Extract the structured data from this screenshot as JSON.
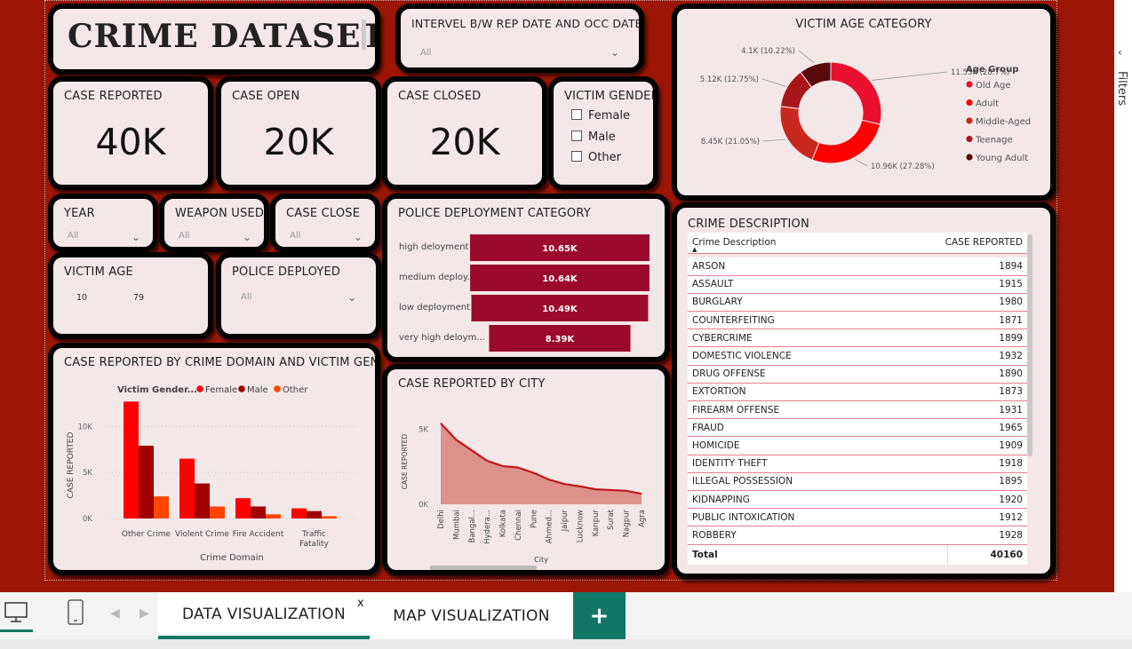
{
  "title": "CRIME DATASET",
  "date_slicer": {
    "title": "INTERVEL B/W REP DATE AND OCC DATE",
    "value": "All"
  },
  "kpis": {
    "reported": {
      "label": "CASE REPORTED",
      "value": "40K"
    },
    "open": {
      "label": "CASE OPEN",
      "value": "20K"
    },
    "closed": {
      "label": "CASE CLOSED",
      "value": "20K"
    }
  },
  "gender_slicer": {
    "title": "VICTIM GENDER",
    "options": [
      "Female",
      "Male",
      "Other"
    ]
  },
  "year_slicer": {
    "title": "YEAR",
    "value": "All"
  },
  "weapon_slicer": {
    "title": "WEAPON USED",
    "value": "All"
  },
  "caseclose_slicer": {
    "title": "CASE CLOSE",
    "value": "All"
  },
  "victim_age_slicer": {
    "title": "VICTIM AGE",
    "min": "10",
    "max": "79"
  },
  "police_slicer": {
    "title": "POLICE DEPLOYED",
    "value": "All"
  },
  "colors": {
    "background": "#9b1606",
    "card": "#f3e7e7",
    "bar": "#9b0a2e",
    "accent": "#117865",
    "female": "#ff0000",
    "male": "#a00000",
    "other": "#ff4500"
  },
  "donut": {
    "title": "VICTIM AGE CATEGORY",
    "legend_title": "Age Group",
    "legend": [
      "Old Age",
      "Adult",
      "Middle-Aged",
      "Teenage",
      "Young Adult"
    ],
    "slice_colors": [
      "#e8102e",
      "#ff0000",
      "#c9281e",
      "#a8161a",
      "#5a0a0a"
    ],
    "slice_labels": [
      "11.53K (28.7%)",
      "10.96K (27.28%)",
      "8.45K (21.05%)",
      "5.12K (12.75%)",
      "4.1K (10.22%)"
    ]
  },
  "police_bars": {
    "title": "POLICE DEPLOYMENT CATEGORY",
    "categories": [
      "high deloyment",
      "medium deploy...",
      "low deployment",
      "very high deloym..."
    ],
    "labels": [
      "10.65K",
      "10.64K",
      "10.49K",
      "8.39K"
    ]
  },
  "city_area": {
    "title": "CASE REPORTED BY CITY",
    "xlabel": "City",
    "ylabel": "CASE REPORTED",
    "yticks": [
      "5K",
      "0K"
    ],
    "categories": [
      "Delhi",
      "Mumbai",
      "Bangal...",
      "Hydera...",
      "Kolkata",
      "Chennai",
      "Pune",
      "Ahmed...",
      "Jaipur",
      "Lucknow",
      "Kanpur",
      "Surat",
      "Nagpur",
      "Agra"
    ]
  },
  "domain_bars": {
    "title": "CASE REPORTED BY CRIME DOMAIN AND VICTIM GENDER",
    "legend_title": "Victim Gender...",
    "series_names": [
      "Female",
      "Male",
      "Other"
    ],
    "xlabel": "Crime Domain",
    "ylabel": "CASE REPORTED",
    "yticks": [
      "10K",
      "5K",
      "0K"
    ],
    "categories": [
      "Other Crime",
      "Violent Crime",
      "Fire Accident",
      "Traffic Fatality"
    ]
  },
  "crime_table": {
    "title": "CRIME DESCRIPTION",
    "col1": "Crime Description",
    "col2": "CASE REPORTED",
    "rows": [
      [
        "ARSON",
        "1894"
      ],
      [
        "ASSAULT",
        "1915"
      ],
      [
        "BURGLARY",
        "1980"
      ],
      [
        "COUNTERFEITING",
        "1871"
      ],
      [
        "CYBERCRIME",
        "1899"
      ],
      [
        "DOMESTIC VIOLENCE",
        "1932"
      ],
      [
        "DRUG OFFENSE",
        "1890"
      ],
      [
        "EXTORTION",
        "1873"
      ],
      [
        "FIREARM OFFENSE",
        "1931"
      ],
      [
        "FRAUD",
        "1965"
      ],
      [
        "HOMICIDE",
        "1909"
      ],
      [
        "IDENTITY THEFT",
        "1918"
      ],
      [
        "ILLEGAL POSSESSION",
        "1895"
      ],
      [
        "KIDNAPPING",
        "1920"
      ],
      [
        "PUBLIC INTOXICATION",
        "1912"
      ],
      [
        "ROBBERY",
        "1928"
      ]
    ],
    "total_label": "Total",
    "total_value": "40160"
  },
  "tabs": {
    "active": "DATA VISUALIZATION",
    "inactive": "MAP VISUALIZATION",
    "close": "x",
    "add": "+"
  },
  "right_pane_label": "Filters",
  "chart_data": [
    {
      "type": "pie",
      "title": "VICTIM AGE CATEGORY",
      "categories": [
        "Old Age",
        "Adult",
        "Middle-Aged",
        "Teenage",
        "Young Adult"
      ],
      "values": [
        11530,
        10960,
        8450,
        5120,
        4100
      ],
      "percent": [
        28.7,
        27.28,
        21.05,
        12.75,
        10.22
      ]
    },
    {
      "type": "bar",
      "orientation": "horizontal",
      "title": "POLICE DEPLOYMENT CATEGORY",
      "categories": [
        "high deloyment",
        "medium deploy...",
        "low deployment",
        "very high deloym..."
      ],
      "values": [
        10650,
        10640,
        10490,
        8390
      ]
    },
    {
      "type": "bar",
      "title": "CASE REPORTED BY CRIME DOMAIN AND VICTIM GENDER",
      "categories": [
        "Other Crime",
        "Violent Crime",
        "Fire Accident",
        "Traffic Fatality"
      ],
      "series": [
        {
          "name": "Female",
          "values": [
            12700,
            6500,
            2200,
            1100
          ]
        },
        {
          "name": "Male",
          "values": [
            7900,
            3800,
            1300,
            800
          ]
        },
        {
          "name": "Other",
          "values": [
            2400,
            1300,
            450,
            250
          ]
        }
      ],
      "xlabel": "Crime Domain",
      "ylabel": "CASE REPORTED",
      "ylim": [
        0,
        13500
      ],
      "legend": "top"
    },
    {
      "type": "area",
      "title": "CASE REPORTED BY CITY",
      "categories": [
        "Delhi",
        "Mumbai",
        "Bangal...",
        "Hydera...",
        "Kolkata",
        "Chennai",
        "Pune",
        "Ahmed...",
        "Jaipur",
        "Lucknow",
        "Kanpur",
        "Surat",
        "Nagpur",
        "Agra"
      ],
      "values": [
        5400,
        4300,
        3600,
        2900,
        2550,
        2450,
        2100,
        1650,
        1350,
        1200,
        1000,
        950,
        900,
        700
      ],
      "xlabel": "City",
      "ylabel": "CASE REPORTED",
      "ylim": [
        0,
        5800
      ]
    }
  ]
}
